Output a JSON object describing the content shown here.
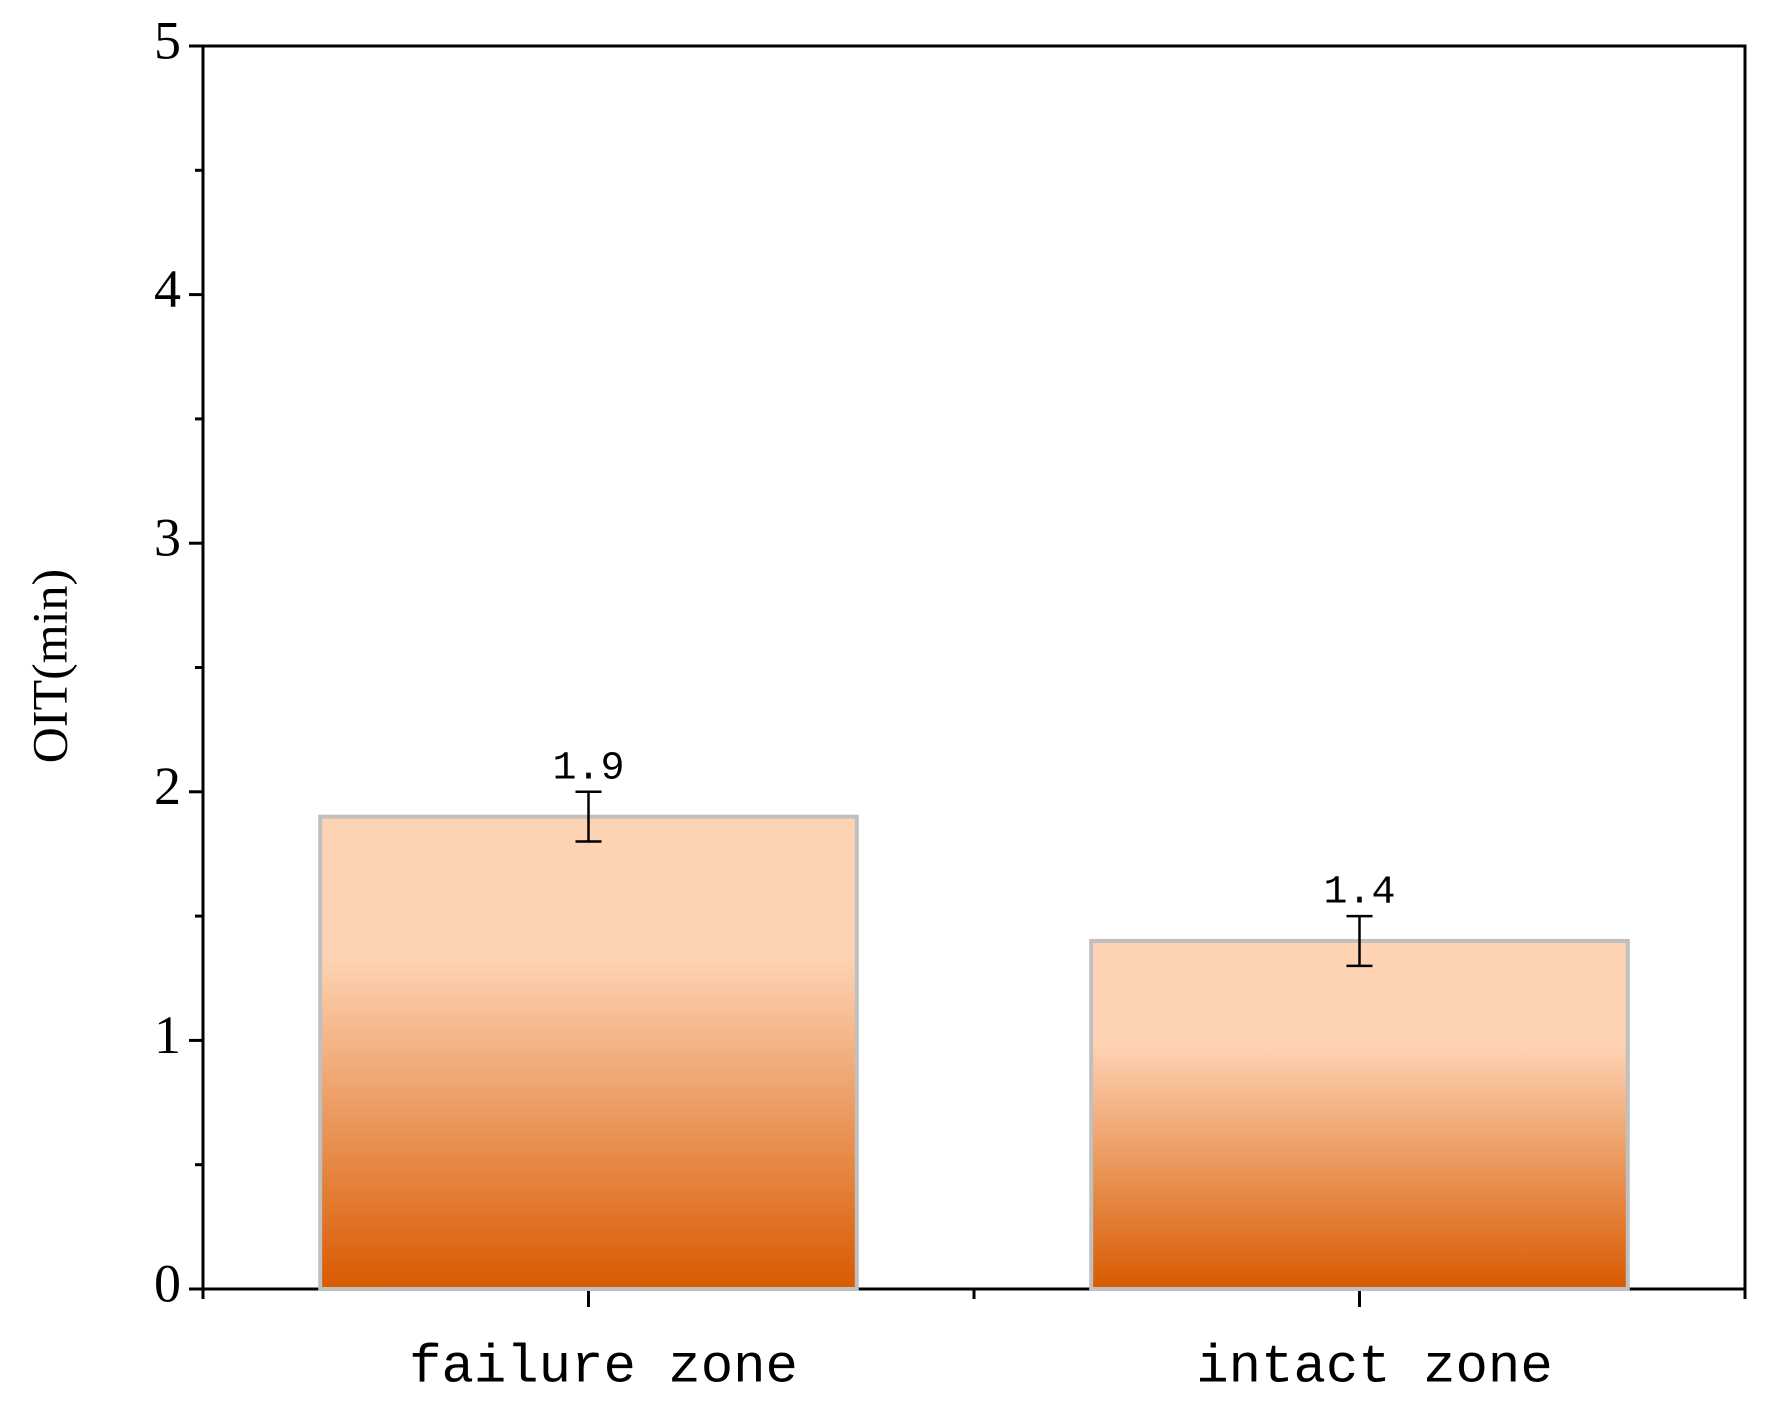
{
  "chart_data": {
    "type": "bar",
    "y_label": "OIT(min)",
    "categories": [
      "failure zone",
      "intact zone"
    ],
    "values": [
      1.9,
      1.4
    ],
    "errors": [
      0.1,
      0.1
    ],
    "gradient": [
      "#fdd3b3",
      "#d85a00"
    ],
    "edge_color": "#c0c0c0",
    "ylim": [
      0,
      5
    ],
    "yticks": [
      0,
      1,
      2,
      3,
      4,
      5
    ],
    "grid": false
  }
}
